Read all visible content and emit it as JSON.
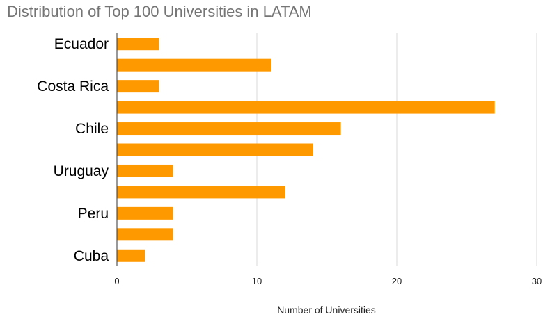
{
  "chart_data": {
    "type": "bar",
    "orientation": "horizontal",
    "title": "Distribution of Top 100 Universities in LATAM",
    "xlabel": "Number of Universities",
    "ylabel": "",
    "xlim": [
      0,
      30
    ],
    "x_ticks": [
      0,
      10,
      20,
      30
    ],
    "grid": true,
    "legend": "none",
    "bar_color": "#ff9900",
    "categories": [
      "Ecuador",
      "",
      "Costa Rica",
      "",
      "Chile",
      "",
      "Uruguay",
      "",
      "Peru",
      "",
      "Cuba"
    ],
    "values": [
      3,
      11,
      3,
      27,
      16,
      14,
      4,
      12,
      4,
      4,
      2
    ]
  }
}
